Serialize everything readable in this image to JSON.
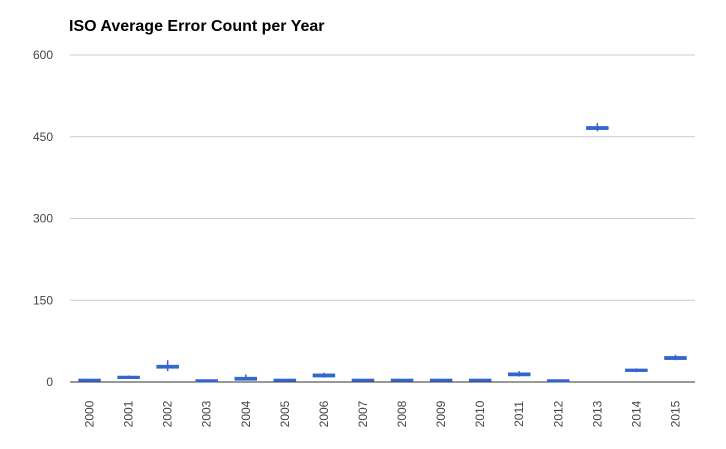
{
  "chart_data": {
    "type": "candlestick",
    "title": "ISO Average Error Count per Year",
    "categories": [
      "2000",
      "2001",
      "2002",
      "2003",
      "2004",
      "2005",
      "2006",
      "2007",
      "2008",
      "2009",
      "2010",
      "2011",
      "2012",
      "2013",
      "2014",
      "2015"
    ],
    "series": [
      {
        "color": "#3366cc",
        "low": [
          0,
          6,
          20,
          0,
          3,
          0,
          8,
          0,
          0,
          0,
          0,
          10,
          0,
          460,
          18,
          40
        ],
        "open": [
          1,
          6,
          25,
          0,
          3,
          1,
          9,
          1,
          1,
          1,
          1,
          11,
          0,
          463,
          19,
          41
        ],
        "close": [
          3,
          11,
          31,
          1,
          9,
          3,
          15,
          3,
          3,
          3,
          3,
          17,
          1,
          469,
          24,
          47
        ],
        "high": [
          3,
          12,
          40,
          1,
          14,
          3,
          17,
          3,
          3,
          5,
          3,
          20,
          1,
          475,
          25,
          50
        ]
      }
    ],
    "y_ticks": [
      "0",
      "150",
      "300",
      "450",
      "600"
    ],
    "ylim": [
      0,
      600
    ],
    "grid": true,
    "legend": "none"
  }
}
